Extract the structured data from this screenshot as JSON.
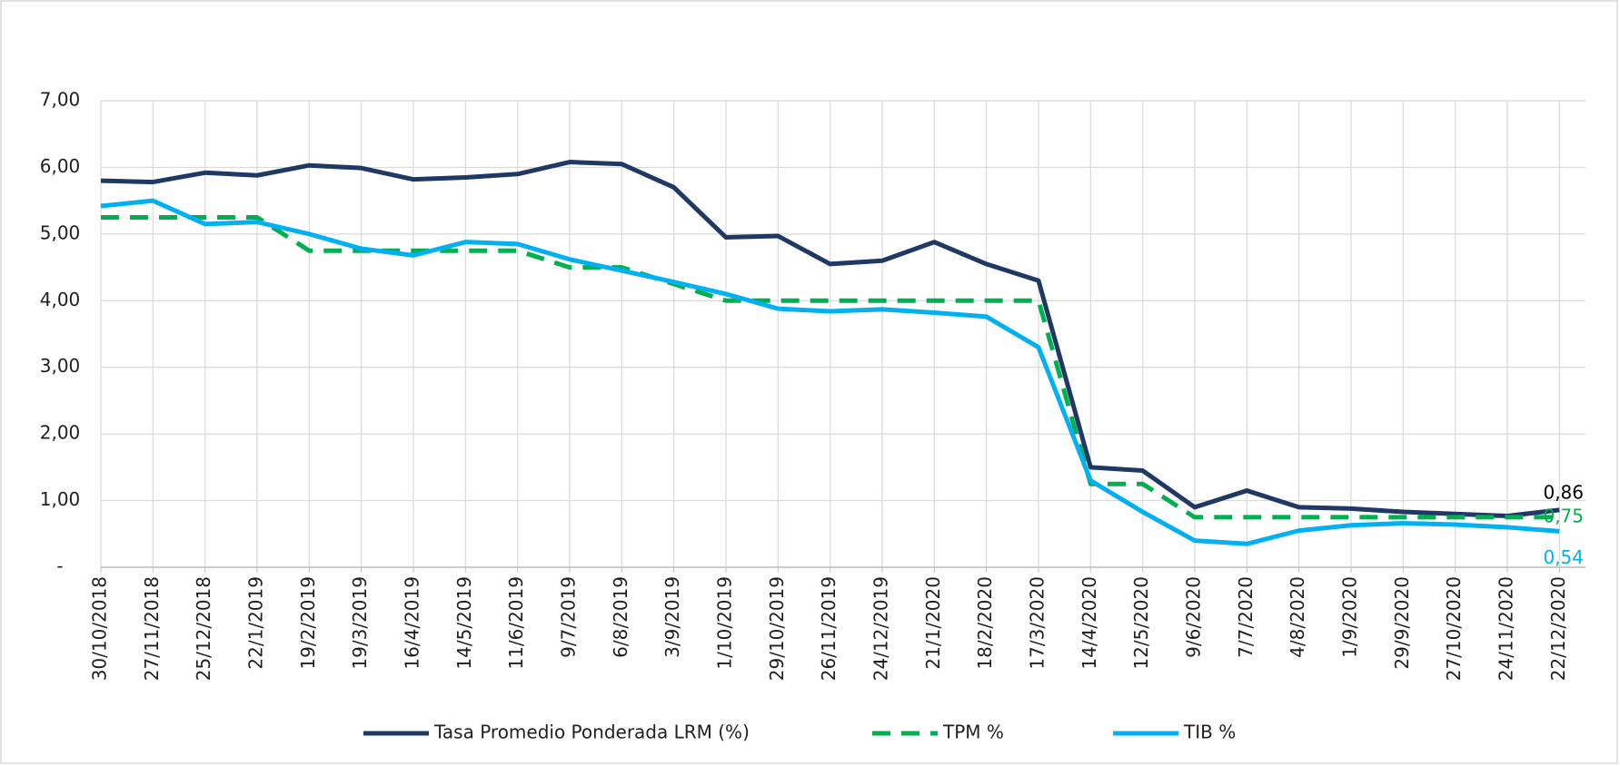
{
  "chart_data": {
    "type": "line",
    "categories": [
      "30/10/2018",
      "27/11/2018",
      "25/12/2018",
      "22/1/2019",
      "19/2/2019",
      "19/3/2019",
      "16/4/2019",
      "14/5/2019",
      "11/6/2019",
      "9/7/2019",
      "6/8/2019",
      "3/9/2019",
      "1/10/2019",
      "29/10/2019",
      "26/11/2019",
      "24/12/2019",
      "21/1/2020",
      "18/2/2020",
      "17/3/2020",
      "14/4/2020",
      "12/5/2020",
      "9/6/2020",
      "7/7/2020",
      "4/8/2020",
      "1/9/2020",
      "29/9/2020",
      "27/10/2020",
      "24/11/2020",
      "22/12/2020"
    ],
    "series": [
      {
        "name": "Tasa Promedio Ponderada LRM (%)",
        "color": "#1f3864",
        "dash": false,
        "values": [
          5.8,
          5.78,
          5.92,
          5.88,
          6.03,
          5.99,
          5.82,
          5.85,
          5.9,
          6.08,
          6.05,
          5.7,
          4.95,
          4.97,
          4.55,
          4.6,
          4.88,
          4.55,
          4.3,
          1.5,
          1.45,
          0.9,
          1.15,
          0.9,
          0.88,
          0.83,
          0.8,
          0.77,
          0.86
        ],
        "value_labels": [
          null,
          null,
          null,
          null,
          null,
          null,
          null,
          null,
          null,
          null,
          null,
          null,
          null,
          null,
          null,
          null,
          null,
          null,
          null,
          null,
          null,
          null,
          null,
          null,
          null,
          null,
          null,
          null,
          "0,86"
        ],
        "label_color": "#000000"
      },
      {
        "name": "TPM %",
        "color": "#00b050",
        "dash": true,
        "values": [
          5.25,
          5.25,
          5.25,
          5.25,
          4.75,
          4.75,
          4.75,
          4.75,
          4.75,
          4.5,
          4.5,
          4.25,
          4.0,
          4.0,
          4.0,
          4.0,
          4.0,
          4.0,
          4.0,
          1.25,
          1.25,
          0.75,
          0.75,
          0.75,
          0.75,
          0.75,
          0.75,
          0.75,
          0.75
        ],
        "value_labels": [
          null,
          null,
          null,
          null,
          null,
          null,
          null,
          null,
          null,
          null,
          null,
          null,
          null,
          null,
          null,
          null,
          null,
          null,
          null,
          null,
          null,
          null,
          null,
          null,
          null,
          null,
          null,
          null,
          "0,75"
        ],
        "label_color": "#00b050"
      },
      {
        "name": "TIB %",
        "color": "#00b0f0",
        "dash": false,
        "values": [
          5.42,
          5.5,
          5.15,
          5.18,
          5.0,
          4.78,
          4.68,
          4.88,
          4.85,
          4.62,
          4.45,
          4.28,
          4.1,
          3.88,
          3.84,
          3.87,
          3.82,
          3.76,
          3.3,
          1.3,
          0.83,
          0.4,
          0.35,
          0.55,
          0.63,
          0.66,
          0.64,
          0.6,
          0.54
        ],
        "value_labels": [
          null,
          null,
          null,
          null,
          null,
          null,
          null,
          null,
          null,
          null,
          null,
          null,
          null,
          null,
          null,
          null,
          null,
          null,
          null,
          null,
          null,
          null,
          null,
          null,
          null,
          null,
          null,
          null,
          "0,54"
        ],
        "label_color": "#00b0f0"
      }
    ],
    "ylim": [
      0,
      7
    ],
    "yticks": [
      {
        "value": 0,
        "label": "-"
      },
      {
        "value": 1,
        "label": "1,00"
      },
      {
        "value": 2,
        "label": "2,00"
      },
      {
        "value": 3,
        "label": "3,00"
      },
      {
        "value": 4,
        "label": "4,00"
      },
      {
        "value": 5,
        "label": "5,00"
      },
      {
        "value": 6,
        "label": "6,00"
      },
      {
        "value": 7,
        "label": "7,00"
      }
    ],
    "grid": true,
    "legend": "bottom"
  }
}
